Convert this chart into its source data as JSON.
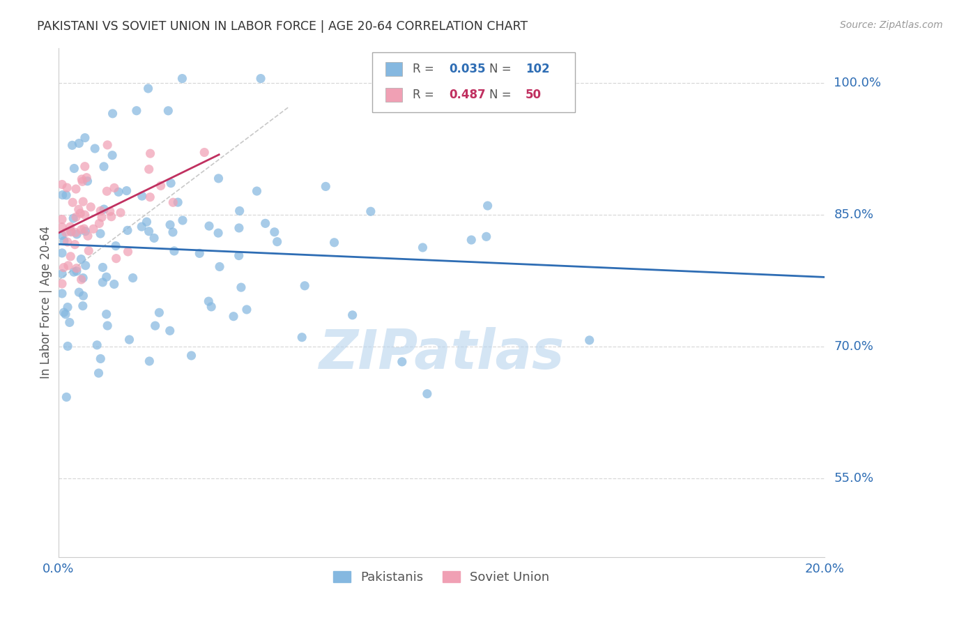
{
  "title": "PAKISTANI VS SOVIET UNION IN LABOR FORCE | AGE 20-64 CORRELATION CHART",
  "source": "Source: ZipAtlas.com",
  "ylabel": "In Labor Force | Age 20-64",
  "ytick_labels": [
    "100.0%",
    "85.0%",
    "70.0%",
    "55.0%"
  ],
  "ytick_values": [
    1.0,
    0.85,
    0.7,
    0.55
  ],
  "xlim": [
    0.0,
    0.2
  ],
  "ylim": [
    0.46,
    1.04
  ],
  "blue_color": "#85b8e0",
  "blue_line_color": "#2e6db4",
  "pink_color": "#f0a0b4",
  "pink_line_color": "#c03060",
  "diag_color": "#c8c8c8",
  "watermark": "ZIPatlas",
  "watermark_color": "#b8d4ee",
  "legend_R_blue": "0.035",
  "legend_N_blue": "102",
  "legend_R_pink": "0.487",
  "legend_N_pink": "50",
  "background_color": "#ffffff",
  "grid_color": "#d8d8d8",
  "blue_scatter_seed": 42,
  "pink_scatter_seed": 7
}
